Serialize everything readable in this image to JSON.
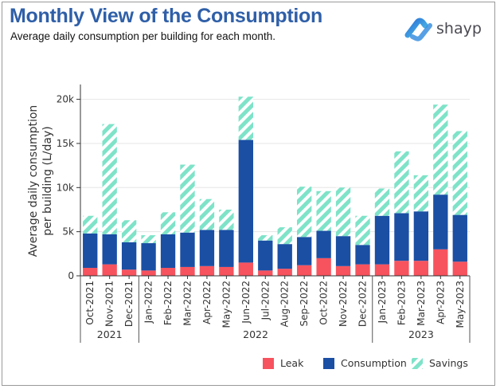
{
  "header": {
    "title": "Monthly View of the Consumption",
    "subtitle": "Average daily consumption per building for each month."
  },
  "brand": {
    "name": "shayp"
  },
  "chart_data": {
    "type": "bar",
    "stacked": true,
    "ylabel_line1": "Average daily consumption",
    "ylabel_line2": "per building (L/day)",
    "ylim": [
      0,
      21500
    ],
    "yticks": [
      0,
      5000,
      10000,
      15000,
      20000
    ],
    "ytick_labels": [
      "0",
      "5k",
      "10k",
      "15k",
      "20k"
    ],
    "grid": true,
    "categories": [
      "Oct-2021",
      "Nov-2021",
      "Dec-2021",
      "Jan-2022",
      "Feb-2022",
      "Mar-2022",
      "Apr-2022",
      "May-2022",
      "Jun-2022",
      "Jul-2022",
      "Aug-2022",
      "Sep-2022",
      "Oct-2022",
      "Nov-2022",
      "Dec-2022",
      "Jan-2023",
      "Feb-2023",
      "Mar-2023",
      "Apr-2023",
      "May-2023"
    ],
    "year_groups": [
      {
        "label": "2021",
        "start": 0,
        "end": 2
      },
      {
        "label": "2022",
        "start": 3,
        "end": 14
      },
      {
        "label": "2023",
        "start": 15,
        "end": 19
      }
    ],
    "series": [
      {
        "name": "Leak",
        "color": "#f7535e",
        "pattern": "solid",
        "values": [
          900,
          1300,
          700,
          600,
          900,
          1000,
          1100,
          1000,
          1500,
          600,
          800,
          1200,
          2000,
          1100,
          1300,
          1300,
          1700,
          1700,
          3000,
          1600
        ]
      },
      {
        "name": "Consumption",
        "color": "#1a4fa4",
        "pattern": "solid",
        "values": [
          3900,
          3400,
          3100,
          3100,
          3800,
          3900,
          4100,
          4200,
          13900,
          3400,
          2800,
          3200,
          3100,
          3400,
          2200,
          5500,
          5400,
          5600,
          6200,
          5300
        ]
      },
      {
        "name": "Savings",
        "color": "#7ee3c8",
        "pattern": "hatch",
        "values": [
          2000,
          12500,
          2500,
          900,
          2500,
          7700,
          3500,
          2300,
          4900,
          600,
          1900,
          5700,
          4500,
          5500,
          3300,
          3100,
          7000,
          4100,
          10200,
          9500
        ]
      }
    ],
    "legend_position": "bottom-right"
  }
}
